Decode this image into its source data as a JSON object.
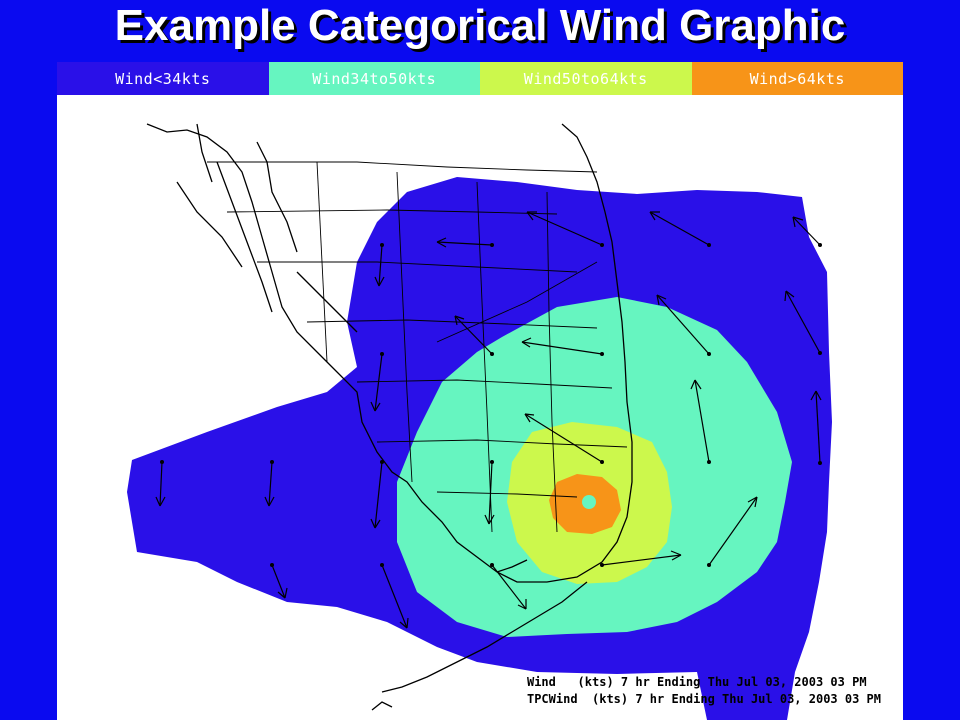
{
  "title": "Example Categorical Wind Graphic",
  "legend": [
    {
      "label": "Wind<34kts",
      "color": "#2a10e8"
    },
    {
      "label": "Wind34to50kts",
      "color": "#66f5c0"
    },
    {
      "label": "Wind50to64kts",
      "color": "#ccf84c"
    },
    {
      "label": "Wind>64kts",
      "color": "#f79418"
    }
  ],
  "footer": {
    "line1": "Wind   (kts) 7 hr Ending Thu Jul 03, 2003 03 PM",
    "line2": "TPCWind  (kts) 7 hr Ending Thu Jul 03, 2003 03 PM"
  },
  "colors": {
    "background": "#0a0af0",
    "map_background": "#ffffff",
    "coastline": "#000000",
    "hurricane_eye": "#66f5c0"
  }
}
